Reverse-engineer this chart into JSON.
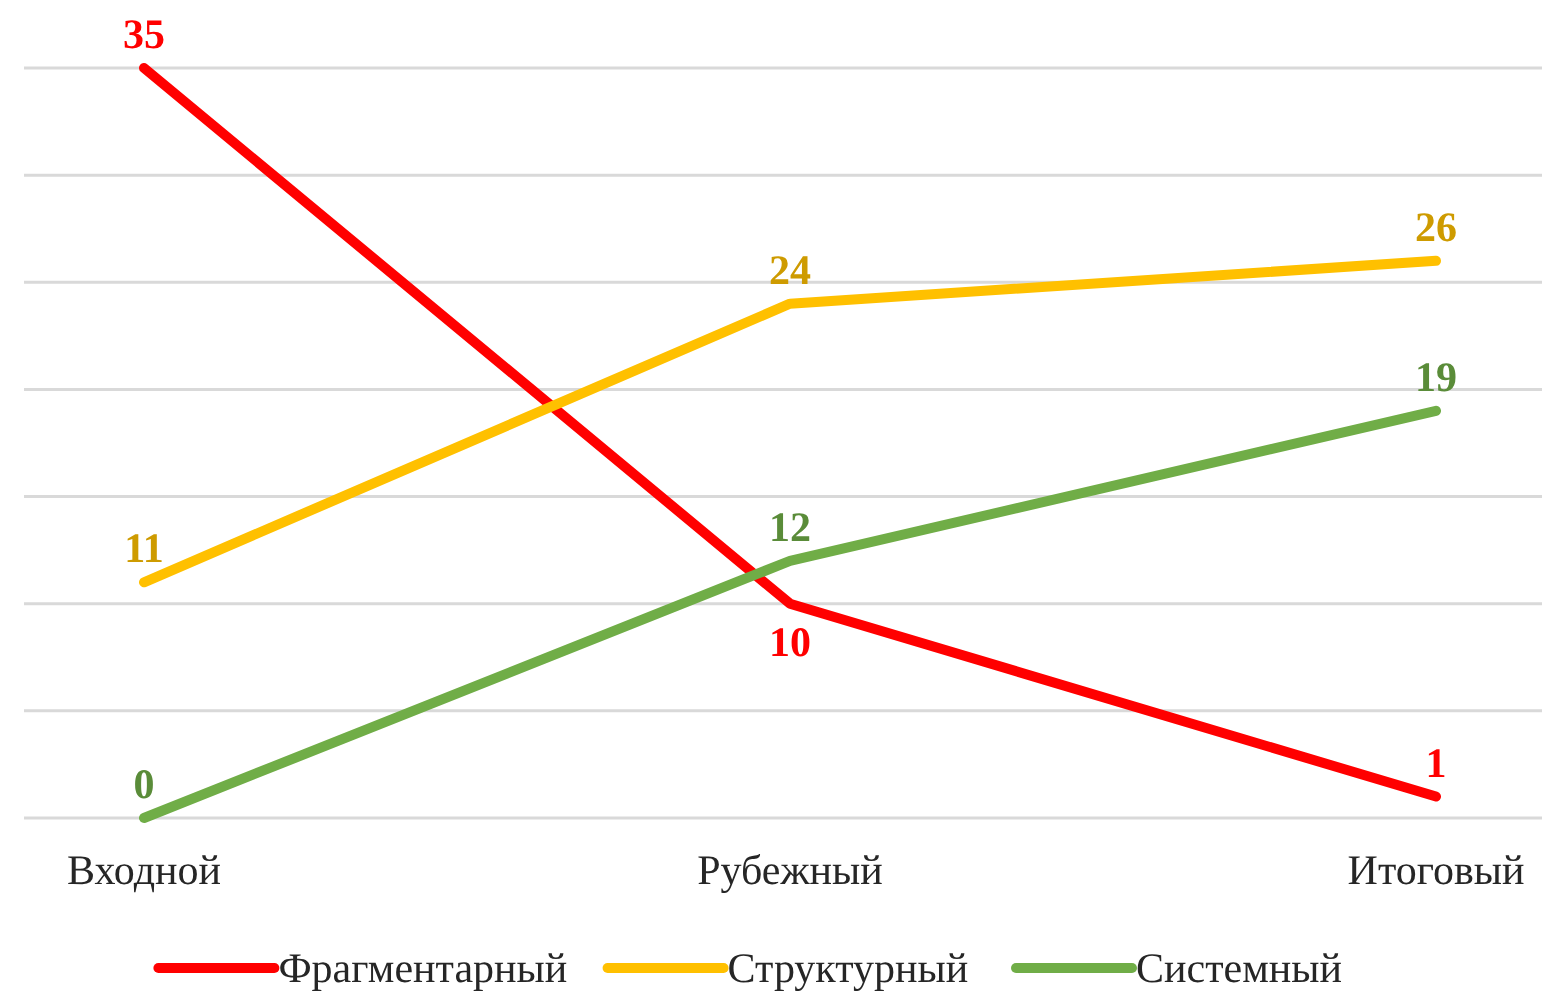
{
  "chart_data": {
    "type": "line",
    "categories": [
      "Входной",
      "Рубежный",
      "Итоговый"
    ],
    "series": [
      {
        "name": "Фрагментарный",
        "color": "#ff0000",
        "values": [
          35,
          10,
          1
        ]
      },
      {
        "name": "Структурный",
        "color": "#ffc000",
        "values": [
          11,
          24,
          26
        ]
      },
      {
        "name": "Системный",
        "color": "#70ad47",
        "values": [
          0,
          12,
          19
        ]
      }
    ],
    "ylim": [
      0,
      35
    ],
    "yticks": [
      {
        "value": 0,
        "label": null
      },
      {
        "value": 5,
        "label": null
      },
      {
        "value": 10,
        "label": null
      },
      {
        "value": 15,
        "label": null
      },
      {
        "value": 20,
        "label": null
      },
      {
        "value": 25,
        "label": null
      },
      {
        "value": 30,
        "label": null
      },
      {
        "value": 35,
        "label": null
      }
    ],
    "grid": "y",
    "tick_labels": "x",
    "data_labels": true,
    "legend": "bottom",
    "marker": "none",
    "line_style": "solid"
  }
}
